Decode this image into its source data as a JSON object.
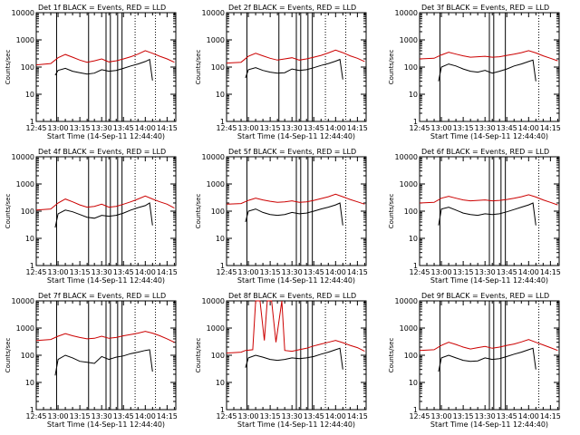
{
  "chart_data": {
    "type": "line",
    "y_scale": "log",
    "ylim": [
      1,
      10000
    ],
    "y_ticks": [
      1,
      10,
      100,
      1000,
      10000
    ],
    "y_tick_labels": [
      "1",
      "10",
      "100",
      "1000",
      "10000"
    ],
    "x_range_minutes_after": [
      0,
      96
    ],
    "x_tick_labels": [
      "12:45",
      "13:00",
      "13:15",
      "13:30",
      "13:45",
      "14:00",
      "14:15"
    ],
    "xlabel": "Start Time (14-Sep-11 12:44:40)",
    "ylabel": "Counts/sec",
    "series_names": [
      "Events",
      "LLD"
    ],
    "series_colors": {
      "Events": "#000000",
      "LLD": "#cc0000"
    },
    "panels": [
      {
        "title": "Det 1f BLACK = Events, RED = LLD",
        "events": {
          "start": 13,
          "x": [
            13,
            15,
            20,
            25,
            30,
            35,
            40,
            45,
            50,
            55,
            60,
            65,
            70,
            75,
            78,
            80
          ],
          "y": [
            50,
            75,
            90,
            70,
            62,
            55,
            60,
            80,
            70,
            75,
            90,
            110,
            130,
            160,
            190,
            32
          ]
        },
        "lld": {
          "x": [
            0,
            10,
            15,
            20,
            25,
            30,
            35,
            40,
            45,
            50,
            55,
            60,
            65,
            70,
            75,
            80,
            85,
            90,
            95
          ],
          "y": [
            120,
            135,
            220,
            290,
            230,
            180,
            150,
            170,
            200,
            155,
            170,
            200,
            240,
            300,
            400,
            320,
            250,
            200,
            150
          ]
        },
        "vlines": [
          14,
          36,
          48,
          51,
          56,
          59
        ],
        "dotted": [
          68,
          82
        ]
      },
      {
        "title": "Det 2f BLACK = Events, RED = LLD",
        "events": {
          "start": 13,
          "x": [
            13,
            15,
            20,
            25,
            30,
            35,
            40,
            45,
            50,
            55,
            60,
            65,
            70,
            75,
            78,
            80
          ],
          "y": [
            40,
            80,
            95,
            75,
            65,
            60,
            62,
            85,
            75,
            80,
            95,
            115,
            135,
            165,
            190,
            35
          ]
        },
        "lld": {
          "x": [
            0,
            10,
            15,
            20,
            25,
            30,
            35,
            40,
            45,
            50,
            55,
            60,
            65,
            70,
            75,
            80,
            85,
            90,
            95
          ],
          "y": [
            140,
            150,
            250,
            320,
            260,
            210,
            180,
            200,
            220,
            180,
            200,
            230,
            270,
            330,
            420,
            340,
            260,
            210,
            160
          ]
        },
        "vlines": [
          14,
          36,
          48,
          51,
          56,
          59
        ],
        "dotted": [
          68,
          82
        ]
      },
      {
        "title": "Det 3f BLACK = Events, RED = LLD",
        "events": {
          "start": 13,
          "x": [
            13,
            15,
            20,
            25,
            30,
            35,
            40,
            45,
            50,
            55,
            60,
            65,
            70,
            75,
            78,
            80
          ],
          "y": [
            30,
            100,
            130,
            110,
            85,
            70,
            65,
            75,
            60,
            70,
            85,
            110,
            130,
            160,
            180,
            30
          ]
        },
        "lld": {
          "x": [
            0,
            10,
            15,
            20,
            25,
            30,
            35,
            40,
            45,
            50,
            55,
            60,
            65,
            70,
            75,
            80,
            85,
            90,
            95
          ],
          "y": [
            200,
            210,
            280,
            350,
            300,
            260,
            230,
            240,
            250,
            230,
            240,
            270,
            300,
            340,
            400,
            330,
            260,
            210,
            170
          ]
        },
        "vlines": [
          14,
          48,
          51,
          59
        ],
        "dotted": [
          82
        ]
      },
      {
        "title": "Det 4f BLACK = Events, RED = LLD",
        "events": {
          "start": 13,
          "x": [
            13,
            15,
            20,
            25,
            30,
            35,
            40,
            45,
            50,
            55,
            60,
            65,
            70,
            75,
            78,
            80
          ],
          "y": [
            25,
            80,
            110,
            95,
            75,
            60,
            55,
            70,
            65,
            70,
            85,
            110,
            135,
            160,
            200,
            30
          ]
        },
        "lld": {
          "x": [
            0,
            10,
            15,
            20,
            25,
            30,
            35,
            40,
            45,
            50,
            55,
            60,
            65,
            70,
            75,
            80,
            85,
            90,
            95
          ],
          "y": [
            110,
            120,
            200,
            280,
            220,
            170,
            140,
            150,
            180,
            140,
            150,
            180,
            220,
            280,
            360,
            280,
            220,
            180,
            130
          ]
        },
        "vlines": [
          14,
          36,
          48,
          51,
          56,
          59
        ],
        "dotted": [
          68,
          82
        ]
      },
      {
        "title": "Det 5f BLACK = Events, RED = LLD",
        "events": {
          "start": 13,
          "x": [
            13,
            15,
            20,
            25,
            30,
            35,
            40,
            45,
            50,
            55,
            60,
            65,
            70,
            75,
            78,
            80
          ],
          "y": [
            40,
            100,
            120,
            90,
            75,
            70,
            75,
            90,
            80,
            85,
            100,
            120,
            140,
            170,
            200,
            30
          ]
        },
        "lld": {
          "x": [
            0,
            10,
            15,
            20,
            25,
            30,
            35,
            40,
            45,
            50,
            55,
            60,
            65,
            70,
            75,
            80,
            85,
            90,
            95
          ],
          "y": [
            180,
            190,
            250,
            300,
            260,
            230,
            210,
            220,
            240,
            210,
            220,
            250,
            290,
            340,
            420,
            340,
            270,
            220,
            180
          ]
        },
        "vlines": [
          14,
          48,
          51,
          56,
          59
        ],
        "dotted": [
          82
        ]
      },
      {
        "title": "Det 6f BLACK = Events, RED = LLD",
        "events": {
          "start": 13,
          "x": [
            13,
            15,
            20,
            25,
            30,
            35,
            40,
            45,
            50,
            55,
            60,
            65,
            70,
            75,
            78,
            80
          ],
          "y": [
            30,
            120,
            140,
            110,
            85,
            75,
            70,
            80,
            75,
            80,
            95,
            115,
            140,
            170,
            200,
            30
          ]
        },
        "lld": {
          "x": [
            0,
            10,
            15,
            20,
            25,
            30,
            35,
            40,
            45,
            50,
            55,
            60,
            65,
            70,
            75,
            80,
            85,
            90,
            95
          ],
          "y": [
            200,
            210,
            300,
            350,
            300,
            260,
            240,
            250,
            260,
            240,
            250,
            270,
            300,
            340,
            400,
            330,
            260,
            210,
            170
          ]
        },
        "vlines": [
          14,
          48,
          51,
          56,
          59
        ],
        "dotted": [
          82
        ]
      },
      {
        "title": "Det 7f BLACK = Events, RED = LLD",
        "events": {
          "start": 13,
          "x": [
            13,
            15,
            20,
            25,
            30,
            35,
            40,
            45,
            50,
            55,
            60,
            65,
            70,
            75,
            78,
            80
          ],
          "y": [
            18,
            70,
            100,
            80,
            60,
            55,
            50,
            90,
            70,
            85,
            95,
            115,
            130,
            150,
            160,
            25
          ]
        },
        "lld": {
          "x": [
            0,
            10,
            15,
            20,
            25,
            30,
            35,
            40,
            45,
            50,
            55,
            60,
            65,
            70,
            75,
            80,
            85,
            90,
            95
          ],
          "y": [
            350,
            380,
            500,
            620,
            520,
            450,
            400,
            420,
            500,
            420,
            450,
            520,
            580,
            650,
            750,
            650,
            520,
            400,
            300
          ]
        },
        "vlines": [
          14,
          36,
          48,
          51,
          56,
          59
        ],
        "dotted": [
          68,
          82
        ]
      },
      {
        "title": "Det 8f BLACK = Events, RED = LLD",
        "events": {
          "start": 13,
          "x": [
            13,
            15,
            20,
            25,
            30,
            35,
            40,
            45,
            50,
            55,
            60,
            65,
            70,
            75,
            78,
            80
          ],
          "y": [
            35,
            80,
            100,
            85,
            70,
            65,
            70,
            80,
            75,
            80,
            90,
            110,
            130,
            160,
            180,
            30
          ]
        },
        "lld": {
          "x": [
            0,
            10,
            13,
            18,
            20,
            23,
            26,
            28,
            31,
            34,
            38,
            40,
            45,
            50,
            55,
            60,
            65,
            70,
            75,
            80,
            85,
            90,
            95
          ],
          "y": [
            120,
            130,
            150,
            160,
            10000,
            10000,
            350,
            10000,
            10000,
            300,
            10000,
            150,
            140,
            160,
            180,
            220,
            260,
            300,
            350,
            290,
            230,
            190,
            140
          ]
        },
        "vlines": [
          14,
          48,
          51,
          56,
          59
        ],
        "dotted": [
          68,
          82
        ]
      },
      {
        "title": "Det 9f BLACK = Events, RED = LLD",
        "events": {
          "start": 13,
          "x": [
            13,
            15,
            20,
            25,
            30,
            35,
            40,
            45,
            50,
            55,
            60,
            65,
            70,
            75,
            78,
            80
          ],
          "y": [
            25,
            80,
            100,
            80,
            65,
            60,
            62,
            80,
            70,
            75,
            90,
            110,
            130,
            160,
            180,
            30
          ]
        },
        "lld": {
          "x": [
            0,
            10,
            15,
            20,
            25,
            30,
            35,
            40,
            45,
            50,
            55,
            60,
            65,
            70,
            75,
            80,
            85,
            90,
            95
          ],
          "y": [
            150,
            160,
            230,
            300,
            250,
            200,
            170,
            190,
            210,
            180,
            200,
            230,
            260,
            310,
            380,
            300,
            240,
            190,
            150
          ]
        },
        "vlines": [
          14,
          48,
          51,
          56,
          59
        ],
        "dotted": [
          82
        ]
      }
    ]
  }
}
